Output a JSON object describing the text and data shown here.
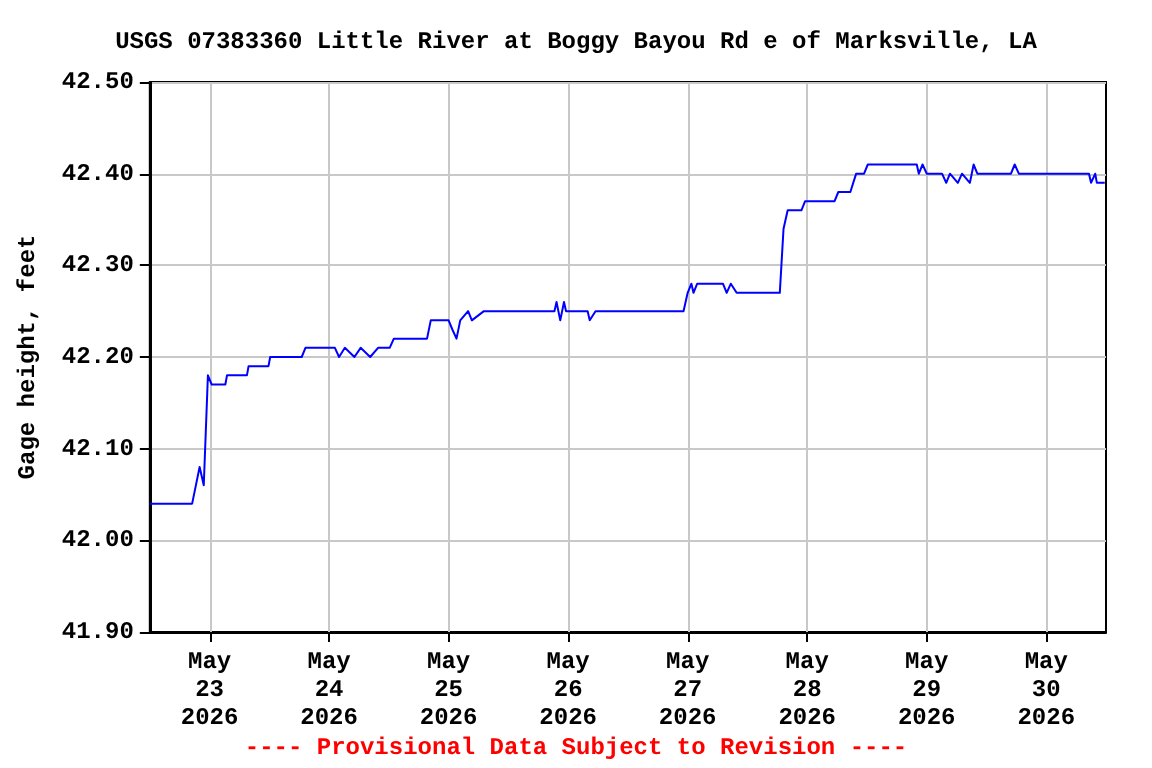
{
  "chart_data": {
    "type": "line",
    "title": "USGS 07383360 Little River at Boggy Bayou Rd e of Marksville, LA",
    "ylabel": "Gage height, feet",
    "annotations": [
      "---- Provisional Data Subject to Revision ----"
    ],
    "xlim": [
      "2026-05-22T12:00",
      "2026-05-30T12:00"
    ],
    "xticks": [
      {
        "value": "2026-05-23",
        "label": "May\n23\n2026"
      },
      {
        "value": "2026-05-24",
        "label": "May\n24\n2026"
      },
      {
        "value": "2026-05-25",
        "label": "May\n25\n2026"
      },
      {
        "value": "2026-05-26",
        "label": "May\n26\n2026"
      },
      {
        "value": "2026-05-27",
        "label": "May\n27\n2026"
      },
      {
        "value": "2026-05-28",
        "label": "May\n28\n2026"
      },
      {
        "value": "2026-05-29",
        "label": "May\n29\n2026"
      },
      {
        "value": "2026-05-30",
        "label": "May\n30\n2026"
      }
    ],
    "ylim": [
      41.9,
      42.5
    ],
    "yticks": [
      {
        "value": 41.9,
        "label": "41.90"
      },
      {
        "value": 42.0,
        "label": "42.00"
      },
      {
        "value": 42.1,
        "label": "42.10"
      },
      {
        "value": 42.2,
        "label": "42.20"
      },
      {
        "value": 42.3,
        "label": "42.30"
      },
      {
        "value": 42.4,
        "label": "42.40"
      },
      {
        "value": 42.5,
        "label": "42.50"
      }
    ],
    "grid": true,
    "marker": "none",
    "line_style": "solid",
    "series": [
      {
        "color": "#0000ff",
        "x": [
          "2026-05-22T12:00",
          "2026-05-22T20:30",
          "2026-05-22T21:15",
          "2026-05-22T22:00",
          "2026-05-22T22:50",
          "2026-05-22T23:15",
          "2026-05-22T23:40",
          "2026-05-23T00:25",
          "2026-05-23T03:10",
          "2026-05-23T03:30",
          "2026-05-23T07:30",
          "2026-05-23T07:50",
          "2026-05-23T11:50",
          "2026-05-23T12:10",
          "2026-05-23T18:30",
          "2026-05-23T19:15",
          "2026-05-24T01:10",
          "2026-05-24T02:00",
          "2026-05-24T03:10",
          "2026-05-24T05:05",
          "2026-05-24T06:20",
          "2026-05-24T08:15",
          "2026-05-24T09:50",
          "2026-05-24T12:10",
          "2026-05-24T13:00",
          "2026-05-24T19:40",
          "2026-05-24T20:25",
          "2026-05-25T00:00",
          "2026-05-25T00:45",
          "2026-05-25T01:35",
          "2026-05-25T02:20",
          "2026-05-25T03:55",
          "2026-05-25T04:40",
          "2026-05-25T07:05",
          "2026-05-25T21:15",
          "2026-05-25T21:40",
          "2026-05-25T22:25",
          "2026-05-25T23:10",
          "2026-05-25T23:35",
          "2026-05-26T03:55",
          "2026-05-26T04:20",
          "2026-05-26T05:30",
          "2026-05-26T23:10",
          "2026-05-27T00:00",
          "2026-05-27T00:45",
          "2026-05-27T01:10",
          "2026-05-27T01:55",
          "2026-05-27T07:05",
          "2026-05-27T07:50",
          "2026-05-27T08:40",
          "2026-05-27T09:50",
          "2026-05-27T18:30",
          "2026-05-27T19:15",
          "2026-05-27T20:05",
          "2026-05-27T22:50",
          "2026-05-27T23:35",
          "2026-05-28T05:30",
          "2026-05-28T06:15",
          "2026-05-28T08:40",
          "2026-05-28T09:50",
          "2026-05-28T11:25",
          "2026-05-28T12:10",
          "2026-05-28T22:00",
          "2026-05-28T22:25",
          "2026-05-28T23:10",
          "2026-05-29T00:00",
          "2026-05-29T03:05",
          "2026-05-29T03:55",
          "2026-05-29T04:40",
          "2026-05-29T06:15",
          "2026-05-29T07:05",
          "2026-05-29T08:40",
          "2026-05-29T09:25",
          "2026-05-29T10:10",
          "2026-05-29T16:55",
          "2026-05-29T17:40",
          "2026-05-29T18:30",
          "2026-05-30T08:35",
          "2026-05-30T09:00",
          "2026-05-30T09:50",
          "2026-05-30T10:10",
          "2026-05-30T11:45"
        ],
        "values": [
          42.04,
          42.04,
          42.06,
          42.08,
          42.06,
          42.12,
          42.18,
          42.17,
          42.17,
          42.18,
          42.18,
          42.19,
          42.19,
          42.2,
          42.2,
          42.21,
          42.21,
          42.2,
          42.21,
          42.2,
          42.21,
          42.2,
          42.21,
          42.21,
          42.22,
          42.22,
          42.24,
          42.24,
          42.23,
          42.22,
          42.24,
          42.25,
          42.24,
          42.25,
          42.25,
          42.26,
          42.24,
          42.26,
          42.25,
          42.25,
          42.24,
          42.25,
          42.25,
          42.27,
          42.28,
          42.27,
          42.28,
          42.28,
          42.27,
          42.28,
          42.27,
          42.27,
          42.34,
          42.36,
          42.36,
          42.37,
          42.37,
          42.38,
          42.38,
          42.4,
          42.4,
          42.41,
          42.41,
          42.4,
          42.41,
          42.4,
          42.4,
          42.39,
          42.4,
          42.39,
          42.4,
          42.39,
          42.41,
          42.4,
          42.4,
          42.41,
          42.4,
          42.4,
          42.39,
          42.4,
          42.39,
          42.39
        ]
      }
    ]
  }
}
